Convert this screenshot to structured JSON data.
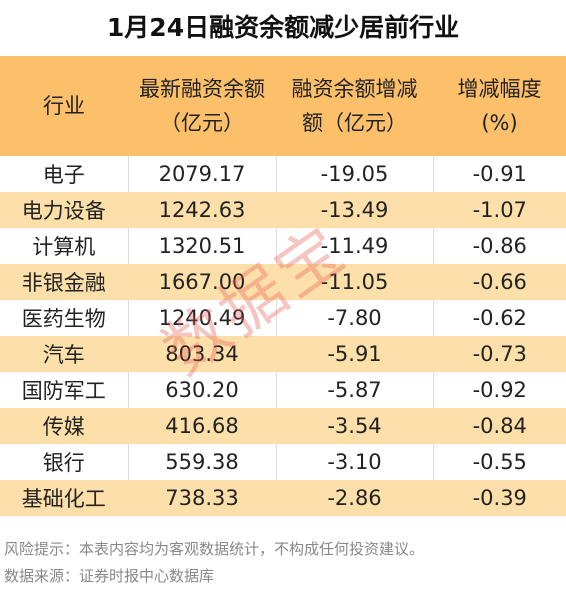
{
  "title": "1月24日融资余额减少居前行业",
  "table": {
    "header": [
      "行业",
      "最新融资余额（亿元）",
      "融资余额增减额（亿元）",
      "增减幅度(%)"
    ],
    "rows": [
      [
        "电子",
        "2079.17",
        "-19.05",
        "-0.91"
      ],
      [
        "电力设备",
        "1242.63",
        "-13.49",
        "-1.07"
      ],
      [
        "计算机",
        "1320.51",
        "-11.49",
        "-0.86"
      ],
      [
        "非银金融",
        "1667.00",
        "-11.05",
        "-0.66"
      ],
      [
        "医药生物",
        "1240.49",
        "-7.80",
        "-0.62"
      ],
      [
        "汽车",
        "803.34",
        "-5.91",
        "-0.73"
      ],
      [
        "国防军工",
        "630.20",
        "-5.87",
        "-0.92"
      ],
      [
        "传媒",
        "416.68",
        "-3.54",
        "-0.84"
      ],
      [
        "银行",
        "559.38",
        "-3.10",
        "-0.55"
      ],
      [
        "基础化工",
        "738.33",
        "-2.86",
        "-0.39"
      ]
    ]
  },
  "watermark": "数据宝",
  "notes": [
    "风险提示：本表内容均为客观数据统计，不构成任何投资建议。",
    "数据来源：证券时报中心数据库"
  ]
}
